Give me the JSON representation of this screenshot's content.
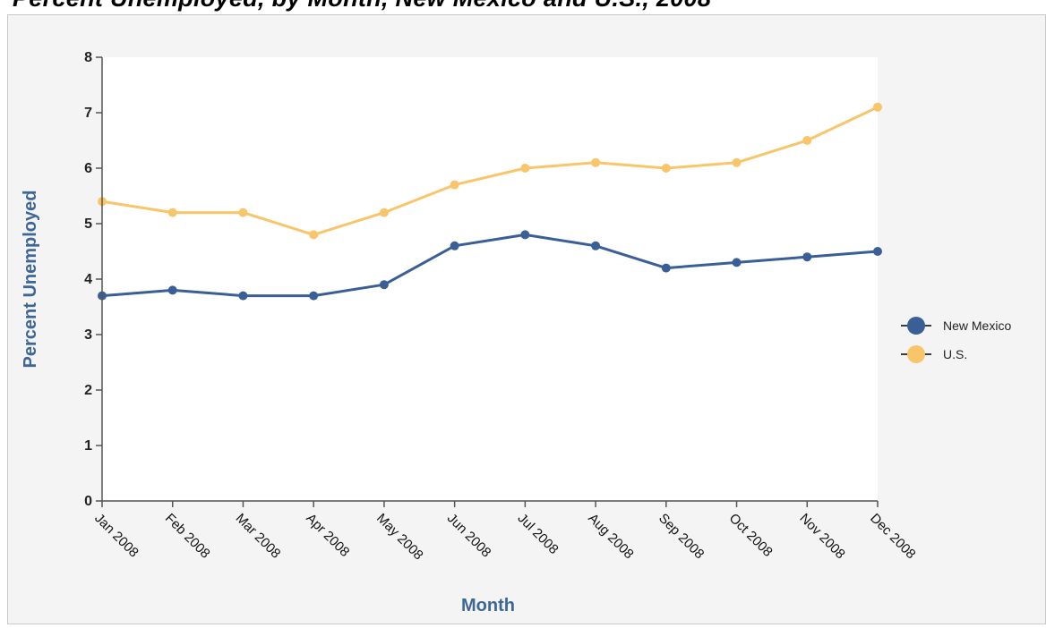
{
  "chart_data": {
    "type": "line",
    "title": "Percent Unemployed, by Month, New Mexico and U.S., 2008",
    "xlabel": "Month",
    "ylabel": "Percent Unemployed",
    "ylim": [
      0,
      8
    ],
    "yticks": [
      0,
      1,
      2,
      3,
      4,
      5,
      6,
      7,
      8
    ],
    "categories": [
      "Jan 2008",
      "Feb 2008",
      "Mar 2008",
      "Apr 2008",
      "May 2008",
      "Jun 2008",
      "Jul 2008",
      "Aug 2008",
      "Sep 2008",
      "Oct 2008",
      "Nov 2008",
      "Dec 2008"
    ],
    "series": [
      {
        "name": "New Mexico",
        "color": "#3a5f96",
        "values": [
          3.7,
          3.8,
          3.7,
          3.7,
          3.9,
          4.6,
          4.8,
          4.6,
          4.2,
          4.3,
          4.4,
          4.5
        ]
      },
      {
        "name": "U.S.",
        "color": "#f8c56a",
        "values": [
          5.4,
          5.2,
          5.2,
          4.8,
          5.2,
          5.7,
          6.0,
          6.1,
          6.0,
          6.1,
          6.5,
          7.1
        ]
      }
    ],
    "grid": false,
    "legend_position": "right",
    "colors": {
      "axis_title": "#3e6796",
      "plot_background": "#ffffff",
      "frame_background": "#f4f4f4"
    }
  }
}
